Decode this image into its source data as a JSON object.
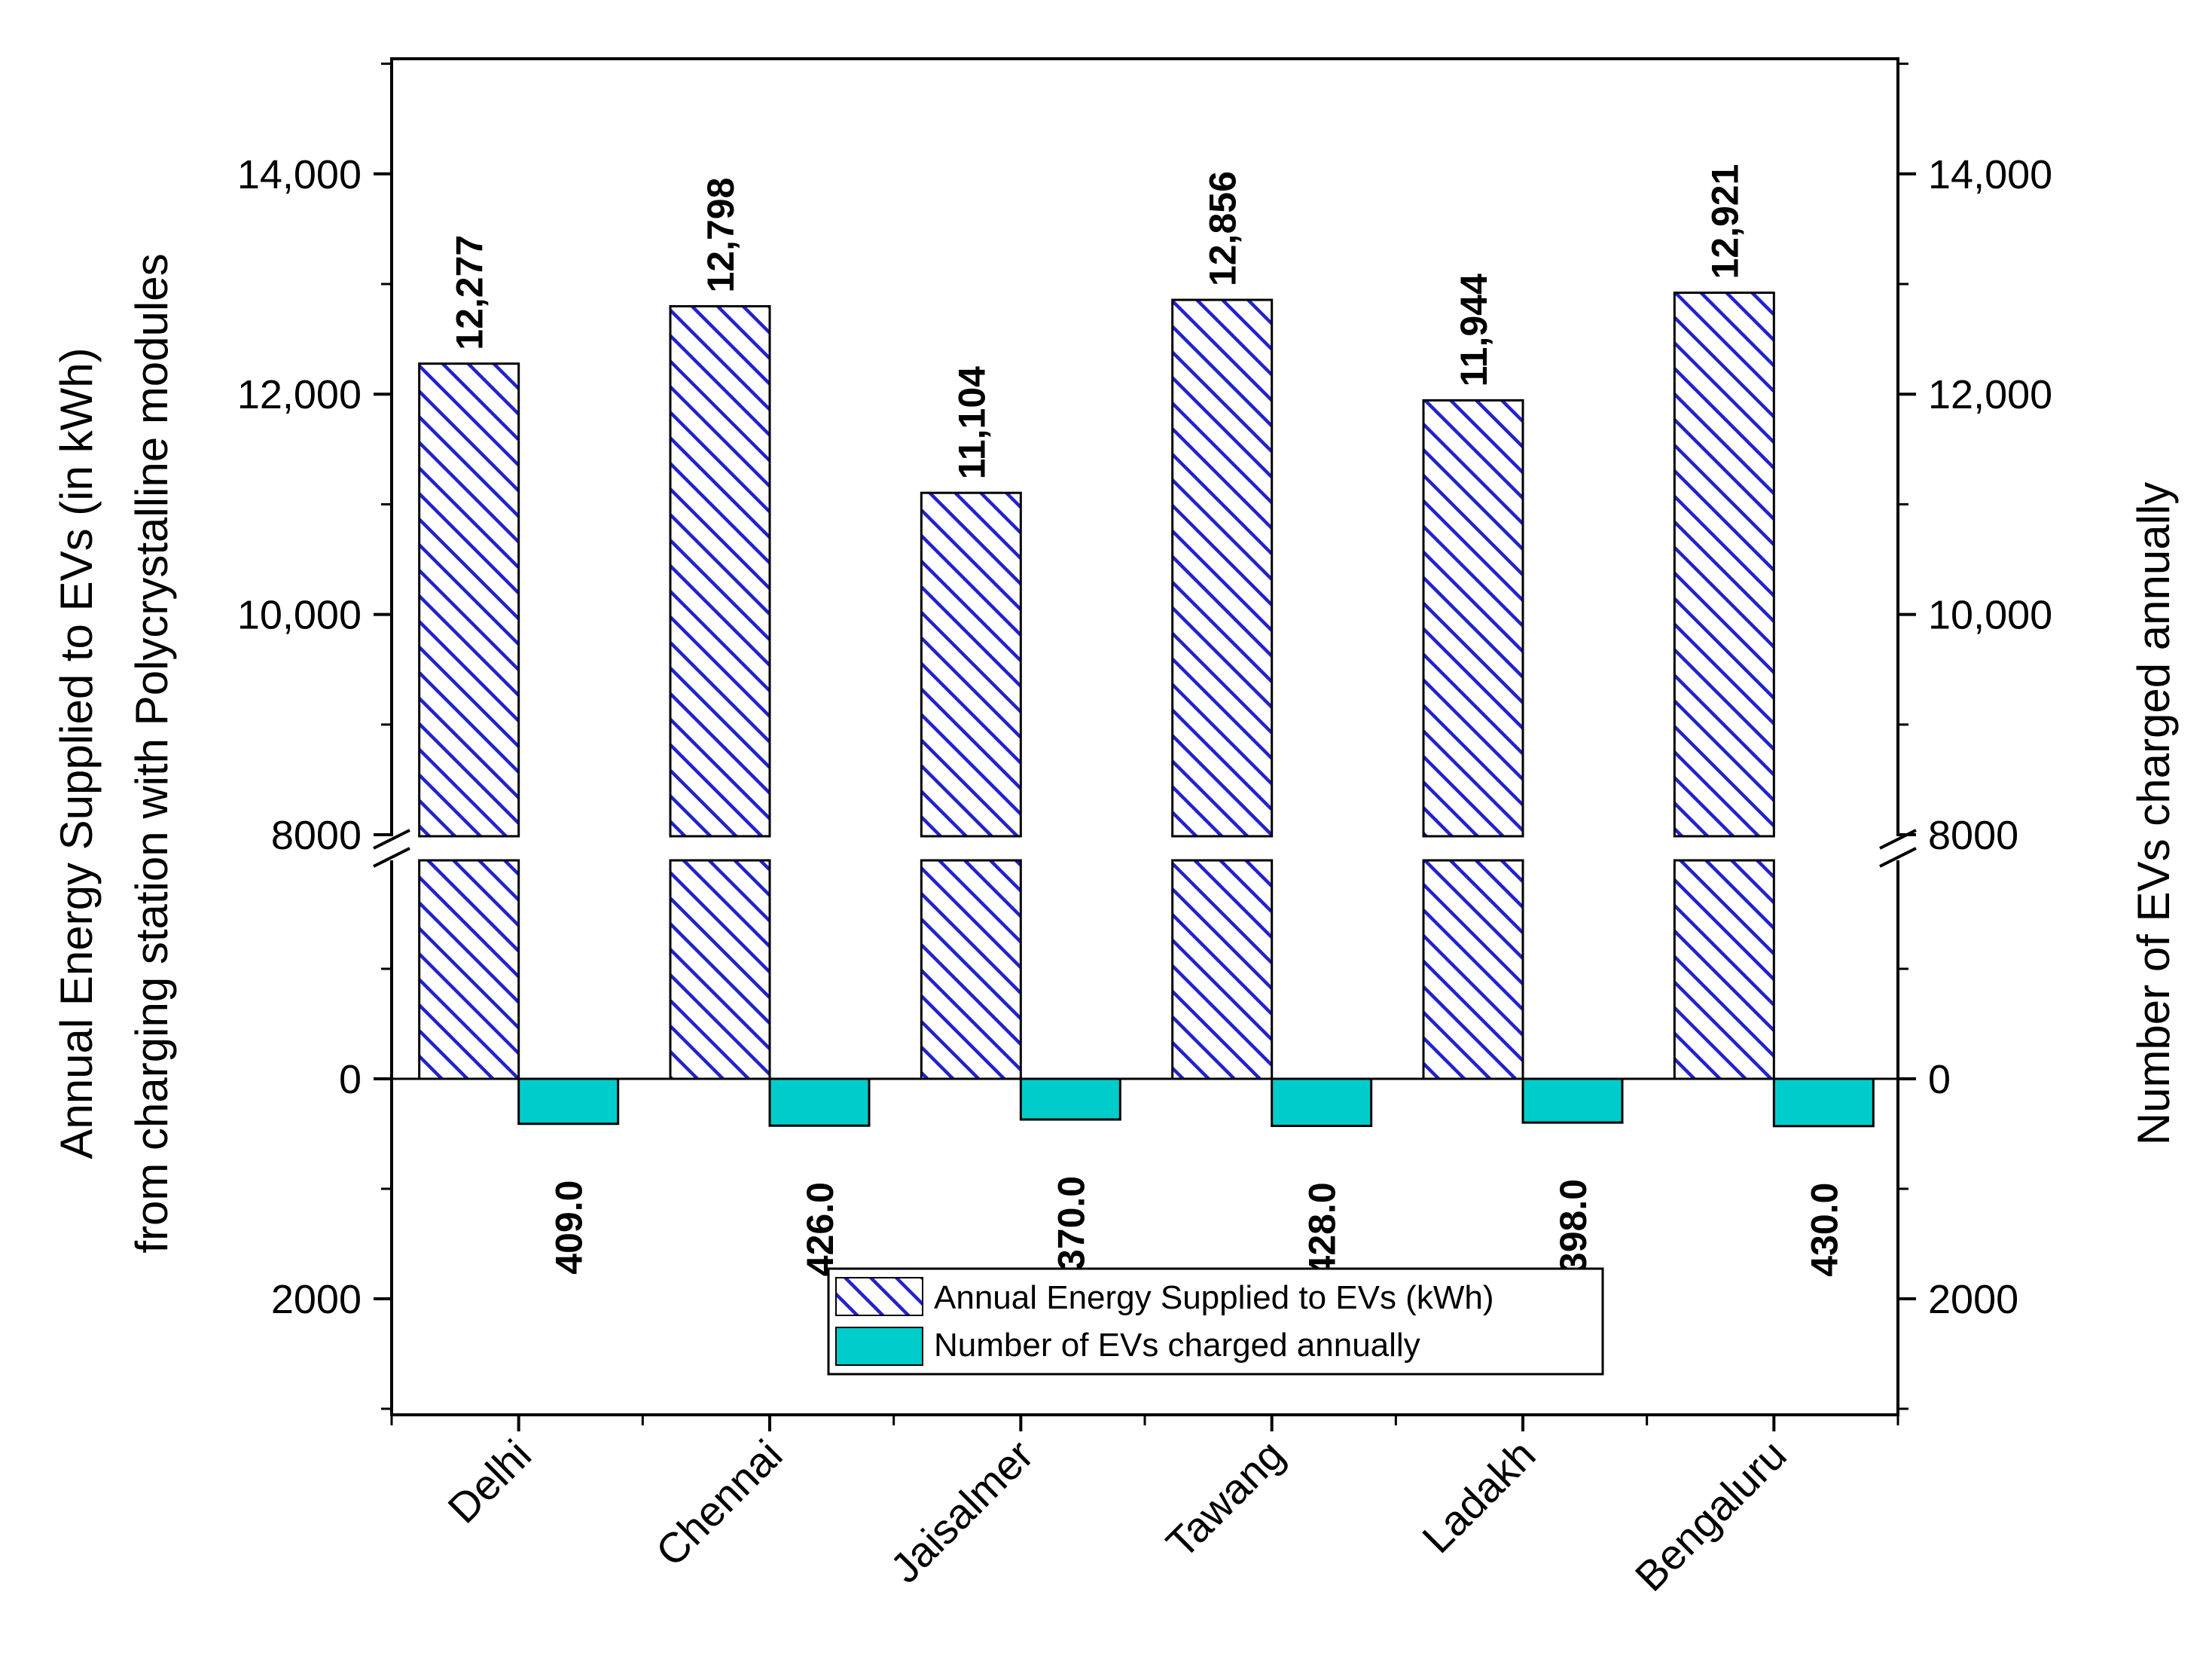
{
  "chart_data": {
    "type": "bar",
    "categories": [
      "Delhi",
      "Chennai",
      "Jaisalmer",
      "Tawang",
      "Ladakh",
      "Bengaluru"
    ],
    "series": [
      {
        "name": "Annual Energy Supplied to EVs (kWh)",
        "values": [
          12277,
          12798,
          11104,
          12856,
          11944,
          12921
        ],
        "labels": [
          "12,277",
          "12,798",
          "11,104",
          "12,856",
          "11,944",
          "12,921"
        ],
        "direction": "up",
        "pattern": "diagonal-hatch",
        "color": "#2222cc"
      },
      {
        "name": "Number of EVs charged annually",
        "values": [
          409.0,
          426.0,
          370.0,
          428.0,
          398.0,
          430.0
        ],
        "labels": [
          "409.0",
          "426.0",
          "370.0",
          "428.0",
          "398.0",
          "430.0"
        ],
        "direction": "down",
        "pattern": "solid",
        "color": "#00cccc"
      }
    ],
    "left_axis": {
      "title_line1": "Annual Energy Supplied to EVs (in kWh)",
      "title_line2": "from charging station with Polycrystalline modules",
      "ticks_upper": [
        {
          "value": 8000,
          "label": "8000"
        },
        {
          "value": 10000,
          "label": "10,000"
        },
        {
          "value": 12000,
          "label": "12,000"
        },
        {
          "value": 14000,
          "label": "14,000"
        }
      ],
      "ticks_lower": [
        {
          "value": 0,
          "label": "0"
        },
        {
          "value": 2000,
          "label": "2000"
        }
      ],
      "break_at": 8000
    },
    "right_axis": {
      "title": "Number of EVs charged annually",
      "ticks_upper": [
        {
          "value": 8000,
          "label": "8000"
        },
        {
          "value": 10000,
          "label": "10,000"
        },
        {
          "value": 12000,
          "label": "12,000"
        },
        {
          "value": 14000,
          "label": "14,000"
        }
      ],
      "ticks_lower": [
        {
          "value": 0,
          "label": "0"
        },
        {
          "value": 2000,
          "label": "2000"
        }
      ]
    },
    "legend_position": "bottom-center",
    "grid": false
  }
}
